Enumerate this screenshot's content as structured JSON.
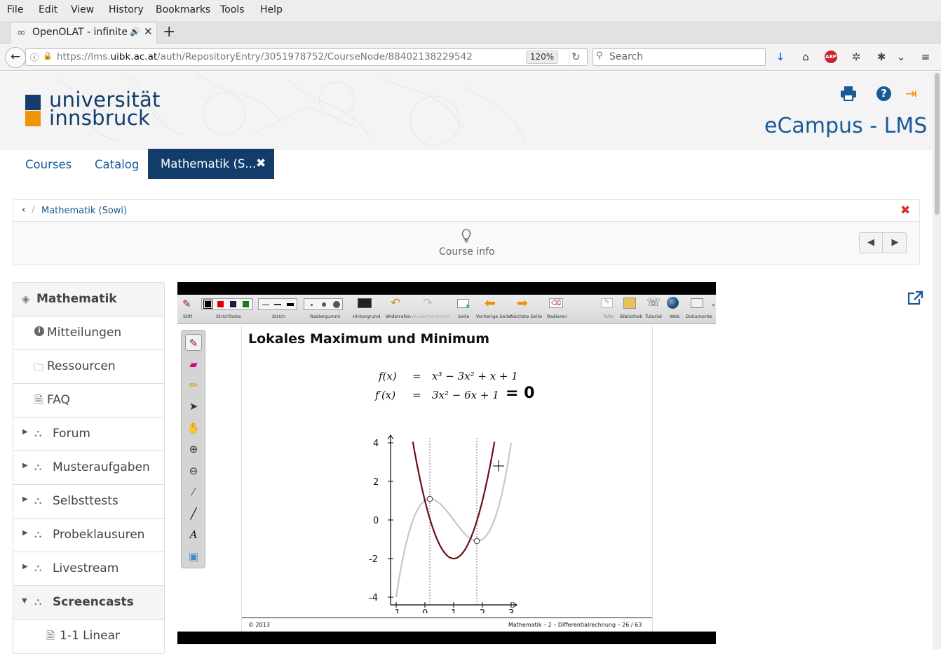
{
  "browser": {
    "menu": [
      "File",
      "Edit",
      "View",
      "History",
      "Bookmarks",
      "Tools",
      "Help"
    ],
    "tab_title": "OpenOLAT - infinite l",
    "url_prefix": "https://lms.",
    "url_domain": "uibk.ac.at",
    "url_path": "/auth/RepositoryEntry/3051978752/CourseNode/88402138229542",
    "zoom": "120%",
    "search_placeholder": "Search",
    "abp_label": "ABP"
  },
  "header": {
    "logo_line1": "universität",
    "logo_line2": "innsbruck",
    "site_title": "eCampus - LMS"
  },
  "topnav": {
    "courses": "Courses",
    "catalog": "Catalog",
    "active_tab": "Mathematik (S..."
  },
  "breadcrumb": {
    "separator": "/",
    "course": "Mathematik (Sowi)"
  },
  "course_info": "Course info",
  "sidebar": {
    "items": [
      {
        "label": "Mathematik",
        "bold": true
      },
      {
        "label": "Mitteilungen"
      },
      {
        "label": "Ressourcen"
      },
      {
        "label": "FAQ"
      },
      {
        "label": "Forum"
      },
      {
        "label": "Musteraufgaben"
      },
      {
        "label": "Selbsttests"
      },
      {
        "label": "Probeklausuren"
      },
      {
        "label": "Livestream"
      },
      {
        "label": "Screencasts",
        "bold": true
      },
      {
        "label": "1-1 Linear"
      }
    ]
  },
  "lecture": {
    "toolbar_labels": [
      "Stift",
      "Strichfarbe",
      "Strich",
      "Radiergummi",
      "Hintergrund",
      "Widerrufen",
      "Wiederherstellen",
      "Seite",
      "Vorherige Seite",
      "Nächste Seite",
      "Radieren",
      "Tafel",
      "Bibliothek",
      "Tutorial",
      "Web",
      "Dokumente"
    ],
    "slide_title": "Lokales Maximum und Minimum",
    "formula1_lhs": "f(x)",
    "formula1_eq": "=",
    "formula1_rhs": "x³ − 3x² + x + 1",
    "formula2_lhs": "f′(x)",
    "formula2_eq": "=",
    "formula2_rhs": "3x² − 6x + 1",
    "handwritten": "= 0",
    "footer_left": "© 2013",
    "footer_right": "Mathematik – 2 – Differentialrechnung – 26 / 63",
    "graph": {
      "x_ticks": [
        "-1",
        "0",
        "1",
        "2",
        "3"
      ],
      "y_ticks": [
        "4",
        "2",
        "0",
        "-2",
        "-4"
      ]
    }
  },
  "colors": {
    "brand_blue": "#1a5a96",
    "active_tab": "#123d6b",
    "logo_blue": "#123d6b",
    "logo_orange": "#f29400",
    "close_red": "#d9332b"
  }
}
